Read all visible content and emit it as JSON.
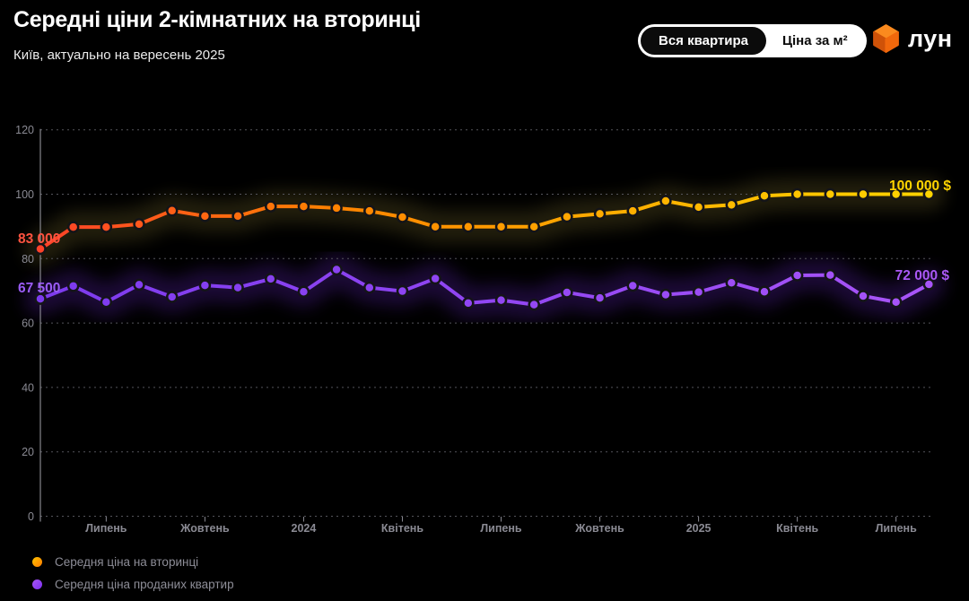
{
  "header": {
    "title": "Середні ціни 2-кімнатних на вторинці",
    "subtitle": "Київ, актуально на вересень 2025",
    "toggle": {
      "options": [
        {
          "label": "Вся квартира",
          "selected": true
        },
        {
          "label": "Ціна за м²",
          "selected": false
        }
      ]
    },
    "logo": {
      "text": "лун",
      "accent": "#f86a0b"
    }
  },
  "chart_data": {
    "type": "line",
    "title": "Середні ціни 2-кімнатних на вторинці",
    "x_unit": "months (Jun 2023 – Sep 2025)",
    "y_unit": "thousand USD",
    "ylim": [
      0,
      120
    ],
    "y_ticks": [
      0,
      20,
      40,
      60,
      80,
      100,
      120
    ],
    "grid": true,
    "x_tick_labels": [
      {
        "index": 2,
        "label": "Липень"
      },
      {
        "index": 5,
        "label": "Жовтень"
      },
      {
        "index": 8,
        "label": "2024"
      },
      {
        "index": 11,
        "label": "Квітень"
      },
      {
        "index": 14,
        "label": "Липень"
      },
      {
        "index": 17,
        "label": "Жовтень"
      },
      {
        "index": 20,
        "label": "2025"
      },
      {
        "index": 23,
        "label": "Квітень"
      },
      {
        "index": 26,
        "label": "Липень"
      }
    ],
    "series": [
      {
        "name": "Середня ціна на вторинці",
        "values": [
          83,
          89.8,
          89.8,
          90.7,
          94.9,
          93.2,
          93.2,
          96.2,
          96.2,
          95.7,
          94.8,
          92.9,
          89.9,
          89.9,
          89.9,
          89.9,
          93,
          93.9,
          94.8,
          97.9,
          96,
          96.7,
          99.5,
          100,
          100,
          100,
          100,
          100
        ],
        "start_label": "83 000",
        "end_label": "100 000 $",
        "start_label_color": "#ff5340",
        "end_label_color": "#ffd400",
        "gradient": [
          "#ff4229",
          "#ff8300",
          "#ffb000",
          "#ffd400"
        ],
        "glow_color": "#ffe45e",
        "glow_opacity": 0.13
      },
      {
        "name": "Середня ціна проданих квартир",
        "values": [
          67.5,
          71.5,
          66.5,
          71.9,
          68.1,
          71.7,
          71,
          73.7,
          69.7,
          76.6,
          71,
          69.9,
          73.8,
          66.2,
          67.1,
          65.7,
          69.5,
          67.8,
          71.6,
          68.8,
          69.6,
          72.5,
          69.7,
          74.8,
          74.9,
          68.4,
          66.5,
          72
        ],
        "start_label": "67 500",
        "end_label": "72 000 $",
        "start_label_color": "#9a5cf5",
        "end_label_color": "#a958f5",
        "gradient": [
          "#7d3bee",
          "#9146f2",
          "#a855f7"
        ],
        "glow_color": "#7b2ff0",
        "glow_opacity": 0.22
      }
    ],
    "legend_position": "bottom-left"
  },
  "colors": {
    "background": "#000000",
    "axis_text": "#8a8a93",
    "grid_line": "#54545b",
    "axis_line": "#a0a0a8"
  }
}
